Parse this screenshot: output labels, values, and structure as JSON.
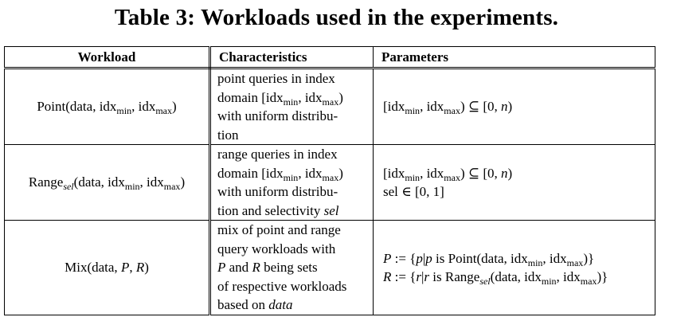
{
  "caption": "Table 3: Workloads used in the experiments.",
  "headers": [
    "Workload",
    "Characteristics",
    "Parameters"
  ],
  "rows": [
    {
      "workload": {
        "name": "Point",
        "args_pre": "(data, idx",
        "min": "min",
        "mid": ", idx",
        "max": "max",
        "end": ")"
      },
      "characteristics": {
        "l1": "point queries in index",
        "l2_pre": "domain [idx",
        "min": "min",
        "sep": ", idx",
        "max": "max",
        "l2_end": ")",
        "l3": "with uniform distribu-",
        "l4": "tion"
      },
      "parameters": {
        "p1_pre": "[idx",
        "min": "min",
        "sep": ", idx",
        "max": "max",
        "p1_end": ") ⊆ [0, ",
        "n": "n",
        "p1_close": ")"
      }
    },
    {
      "workload": {
        "name": "Range",
        "sub": "sel",
        "args_pre": "(data, idx",
        "min": "min",
        "mid": ", idx",
        "max": "max",
        "end": ")"
      },
      "characteristics": {
        "l1": "range queries in index",
        "l2_pre": "domain [idx",
        "min": "min",
        "sep": ", idx",
        "max": "max",
        "l2_end": ")",
        "l3": "with uniform distribu-",
        "l4_pre": "tion and selectivity ",
        "l4_var": "sel"
      },
      "parameters": {
        "p1_pre": "[idx",
        "min": "min",
        "sep": ", idx",
        "max": "max",
        "p1_end": ") ⊆ [0, ",
        "n": "n",
        "p1_close": ")",
        "p2": "sel ∈ [0, 1]"
      }
    },
    {
      "workload": {
        "pre": "Mix(data, ",
        "P": "P",
        "comma": ", ",
        "R": "R",
        "end": ")"
      },
      "characteristics": {
        "l1": "mix of point and range",
        "l2": "query workloads with",
        "l3_P": "P",
        "l3_mid": " and ",
        "l3_R": "R",
        "l3_end": " being sets",
        "l4": "of respective workloads",
        "l5_pre": "based on ",
        "l5_var": "data"
      },
      "parameters": {
        "line1": {
          "P": "P",
          "def": " := {",
          "p": "p",
          "bar": "|",
          "p2": "p",
          "is": " is Point(data, idx",
          "min": "min",
          "sep": ", idx",
          "max": "max",
          "close": ")}"
        },
        "line2": {
          "R": "R",
          "def": " := {",
          "r": "r",
          "bar": "|",
          "r2": "r",
          "is": " is Range",
          "sub": "sel",
          "args": "(data, idx",
          "min": "min",
          "sep": ", idx",
          "max": "max",
          "close": ")}"
        }
      }
    }
  ]
}
